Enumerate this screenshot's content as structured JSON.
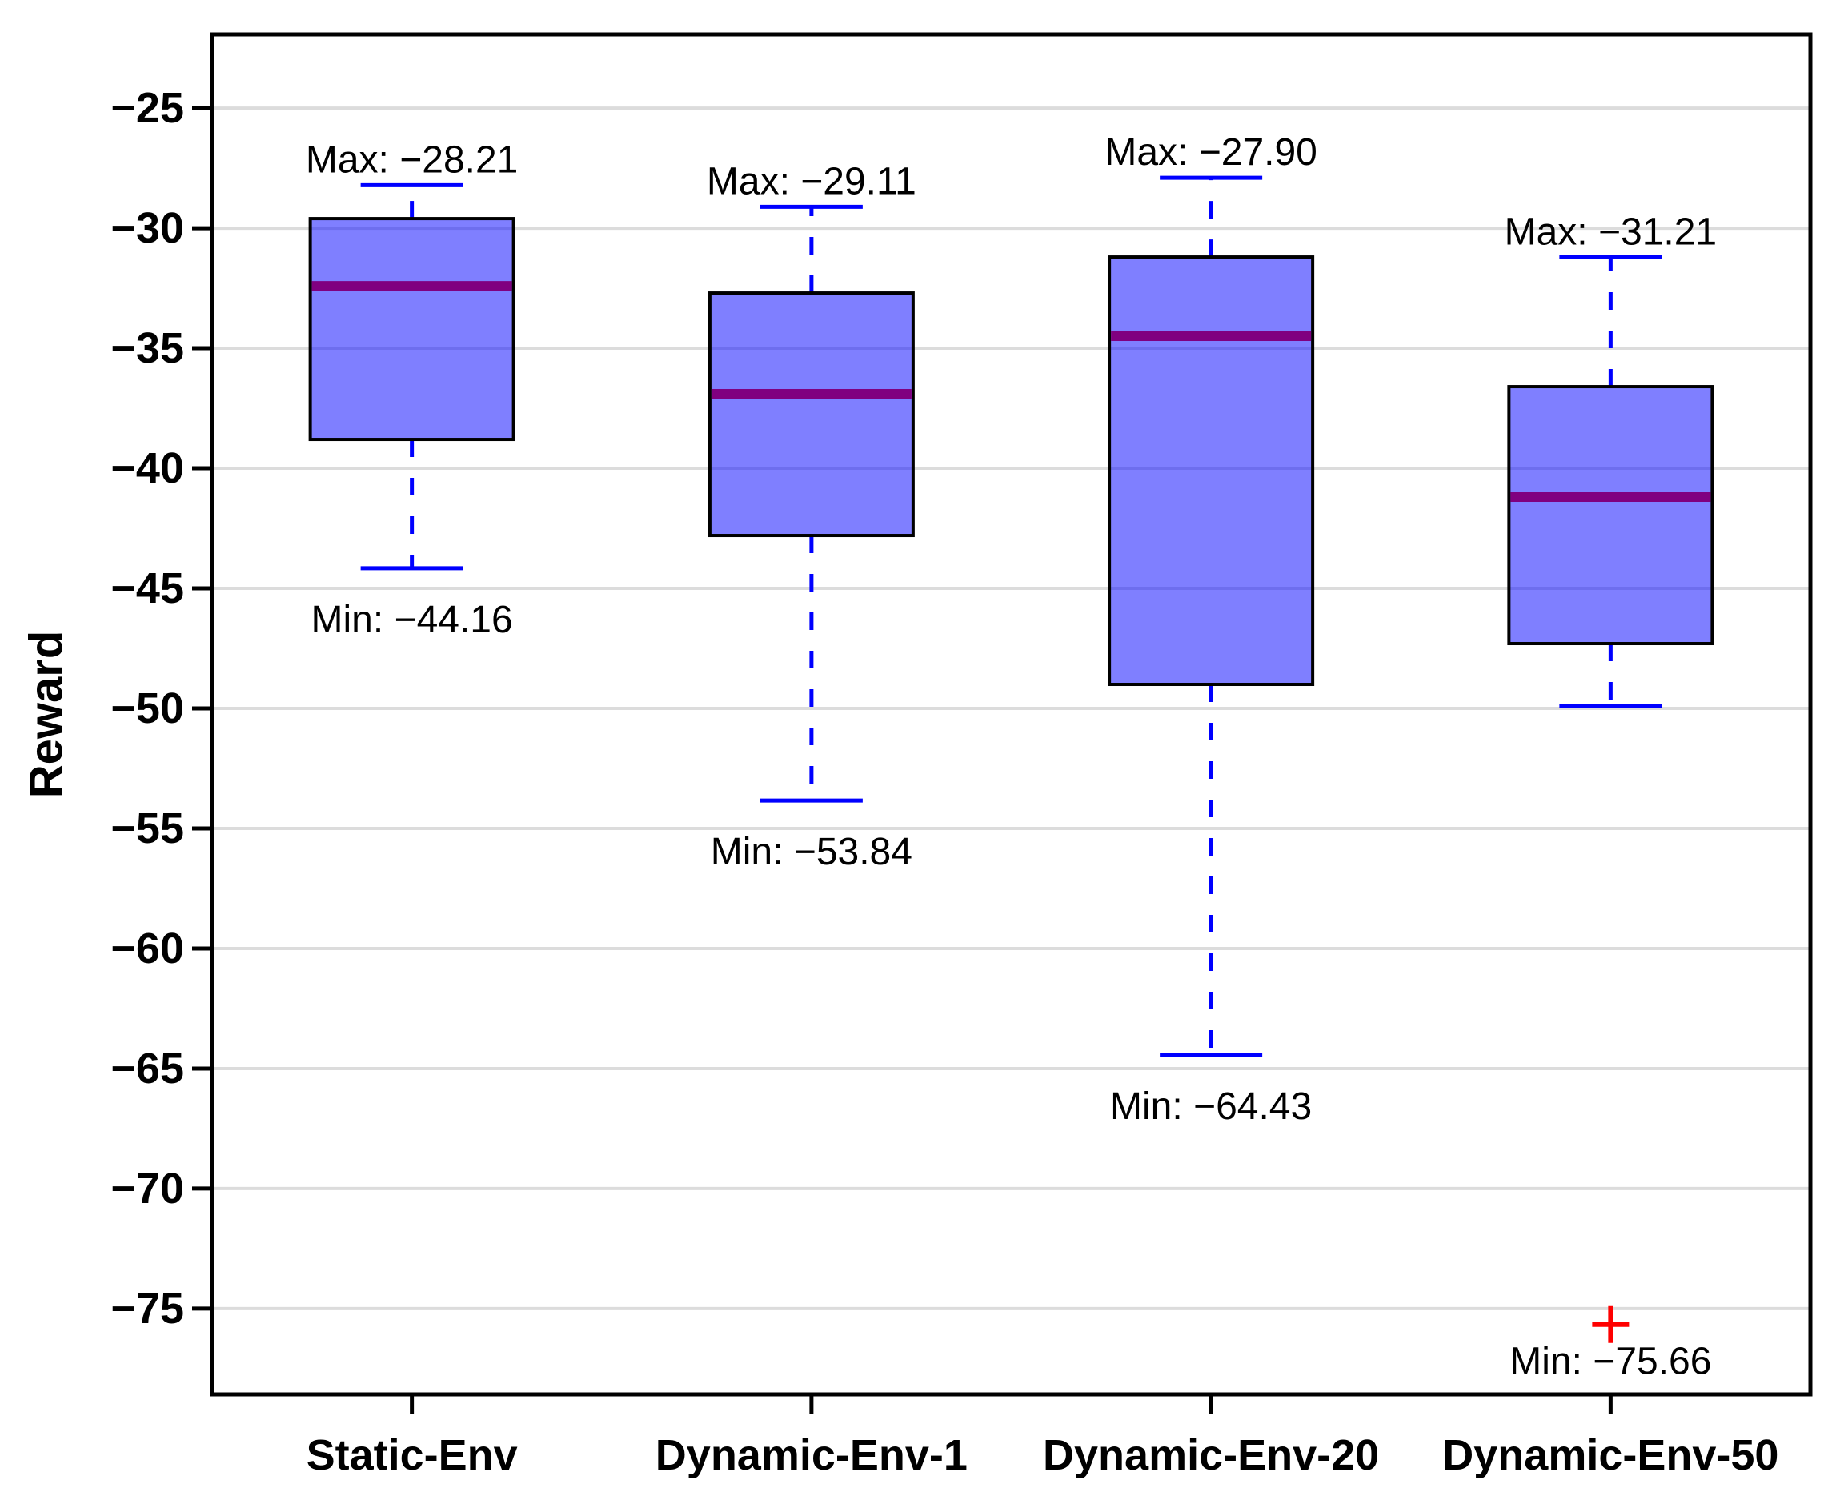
{
  "figure": {
    "kind": "matplotlib-style boxplot screenshot",
    "background": "#ffffff"
  },
  "chart_data": {
    "type": "box",
    "title": "",
    "xlabel": "",
    "ylabel": "Reward",
    "categories": [
      "Static-Env",
      "Dynamic-Env-1",
      "Dynamic-Env-20",
      "Dynamic-Env-50"
    ],
    "ylim": [
      -78.57,
      -21.93
    ],
    "yticks": [
      -25,
      -30,
      -35,
      -40,
      -45,
      -50,
      -55,
      -60,
      -65,
      -70,
      -75
    ],
    "ytick_labels": [
      "−25",
      "−30",
      "−35",
      "−40",
      "−45",
      "−50",
      "−55",
      "−60",
      "−65",
      "−70",
      "−75"
    ],
    "grid": true,
    "legend_position": "none",
    "series": [
      {
        "category": "Static-Env",
        "whisker_high": -28.21,
        "q3": -29.6,
        "median": -32.4,
        "q1": -38.8,
        "whisker_low": -44.16,
        "outliers": [],
        "max_annotation": "Max: −28.21",
        "min_annotation": "Min: −44.16",
        "min_annotation_anchor": "whisker"
      },
      {
        "category": "Dynamic-Env-1",
        "whisker_high": -29.11,
        "q3": -32.7,
        "median": -36.9,
        "q1": -42.8,
        "whisker_low": -53.84,
        "outliers": [],
        "max_annotation": "Max: −29.11",
        "min_annotation": "Min: −53.84",
        "min_annotation_anchor": "whisker"
      },
      {
        "category": "Dynamic-Env-20",
        "whisker_high": -27.9,
        "q3": -31.2,
        "median": -34.5,
        "q1": -49.0,
        "whisker_low": -64.43,
        "outliers": [],
        "max_annotation": "Max: −27.90",
        "min_annotation": "Min: −64.43",
        "min_annotation_anchor": "whisker"
      },
      {
        "category": "Dynamic-Env-50",
        "whisker_high": -31.21,
        "q3": -36.6,
        "median": -41.2,
        "q1": -47.3,
        "whisker_low": -49.9,
        "outliers": [
          -75.66
        ],
        "max_annotation": "Max: −31.21",
        "min_annotation": "Min: −75.66",
        "min_annotation_anchor": "outlier"
      }
    ],
    "colors": {
      "box_fill": "#0000FF",
      "box_fill_opacity": 0.5,
      "box_edge": "#000000",
      "median": "#800080",
      "whisker": "#0000FF",
      "cap": "#0000FF",
      "outlier": "#FF0000",
      "grid_line": "#DCDCDC",
      "axis": "#000000",
      "text": "#000000"
    }
  }
}
